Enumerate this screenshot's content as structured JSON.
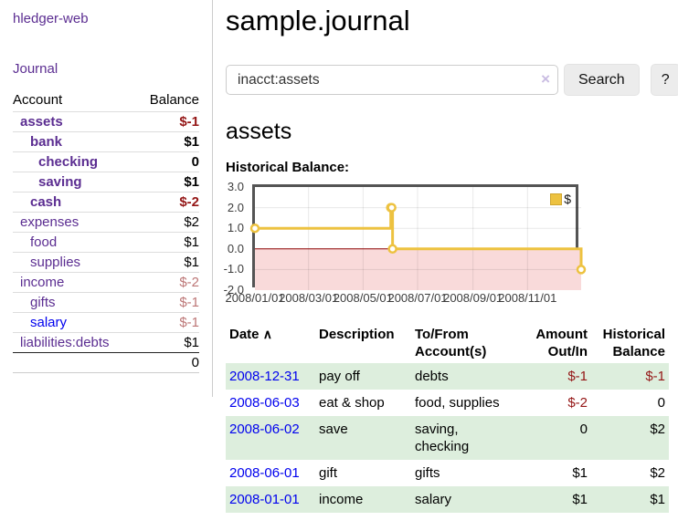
{
  "app": {
    "title": "hledger-web"
  },
  "sidebar": {
    "journal_label": "Journal",
    "accounts": {
      "headers": {
        "account": "Account",
        "balance": "Balance"
      },
      "rows": [
        {
          "name": "assets",
          "balance": "$-1"
        },
        {
          "name": "bank",
          "balance": "$1"
        },
        {
          "name": "checking",
          "balance": "0"
        },
        {
          "name": "saving",
          "balance": "$1"
        },
        {
          "name": "cash",
          "balance": "$-2"
        },
        {
          "name": "expenses",
          "balance": "$2"
        },
        {
          "name": "food",
          "balance": "$1"
        },
        {
          "name": "supplies",
          "balance": "$1"
        },
        {
          "name": "income",
          "balance": "$-2"
        },
        {
          "name": "gifts",
          "balance": "$-1"
        },
        {
          "name": "salary",
          "balance": "$-1"
        },
        {
          "name": "liabilities:debts",
          "balance": "$1"
        }
      ],
      "total": "0"
    }
  },
  "main": {
    "title": "sample.journal",
    "search": {
      "value": "inacct:assets",
      "clear_icon": "×",
      "button_label": "Search",
      "help_label": "?"
    },
    "account_heading": "assets",
    "chart_title": "Historical Balance:"
  },
  "chart_data": {
    "type": "line",
    "title": "Historical Balance:",
    "step": true,
    "x": [
      "2008-01-01",
      "2008-06-01",
      "2008-06-02",
      "2008-06-03",
      "2008-12-31"
    ],
    "series": [
      {
        "name": "$",
        "color": "#EDC240",
        "values": [
          1,
          2,
          2,
          0,
          -1
        ]
      }
    ],
    "xlim": [
      "2008-01-01",
      "2008-12-31"
    ],
    "ylim": [
      -2,
      3
    ],
    "y_ticks": [
      3,
      2,
      1,
      0,
      -1,
      -2
    ],
    "x_ticks": [
      "2008/01/01",
      "2008/03/01",
      "2008/05/01",
      "2008/07/01",
      "2008/09/01",
      "2008/11/01"
    ],
    "legend_position": "top-right",
    "grid": true,
    "negative_region_color": "#f9dada",
    "zero_line_color": "#8b0000",
    "border_color": "#545454"
  },
  "transactions": {
    "sort_icon": "∧",
    "headers": {
      "date": "Date",
      "description": "Description",
      "accounts": "To/From Account(s)",
      "amount": "Amount Out/In",
      "balance": "Historical Balance"
    },
    "rows": [
      {
        "date": "2008-12-31",
        "description": "pay off",
        "accounts": "debts",
        "amount": "$-1",
        "balance": "$-1"
      },
      {
        "date": "2008-06-03",
        "description": "eat & shop",
        "accounts": "food, supplies",
        "amount": "$-2",
        "balance": "0"
      },
      {
        "date": "2008-06-02",
        "description": "save",
        "accounts": "saving, checking",
        "amount": "0",
        "balance": "$2"
      },
      {
        "date": "2008-06-01",
        "description": "gift",
        "accounts": "gifts",
        "amount": "$1",
        "balance": "$2"
      },
      {
        "date": "2008-01-01",
        "description": "income",
        "accounts": "salary",
        "amount": "$1",
        "balance": "$1"
      }
    ]
  }
}
